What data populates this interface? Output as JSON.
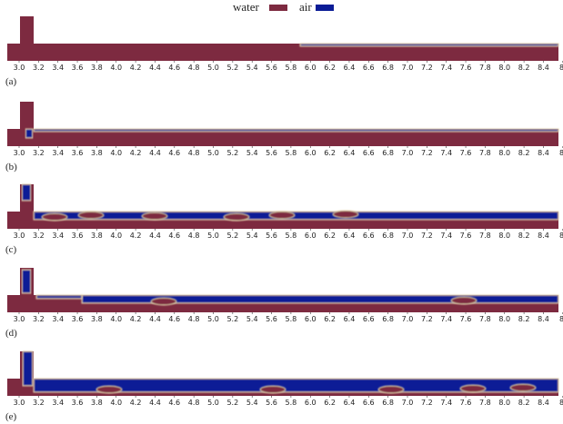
{
  "legend": [
    {
      "label": "water",
      "color": "#7d2a40"
    },
    {
      "label": "air",
      "color": "#0a1c96"
    }
  ],
  "axis_ticks": [
    "3.0",
    "3.2",
    "3.4",
    "3.6",
    "3.8",
    "4.0",
    "4.2",
    "4.4",
    "4.6",
    "4.8",
    "5.0",
    "5.2",
    "5.4",
    "5.6",
    "5.8",
    "6.0",
    "6.2",
    "6.4",
    "6.6",
    "6.8",
    "7.0",
    "7.2",
    "7.4",
    "7.6",
    "7.8",
    "8.0",
    "8.2",
    "8.4",
    "8."
  ],
  "panels": [
    {
      "label": "(a)"
    },
    {
      "label": "(b)"
    },
    {
      "label": "(c)"
    },
    {
      "label": "(d)"
    },
    {
      "label": "(e)"
    }
  ]
}
